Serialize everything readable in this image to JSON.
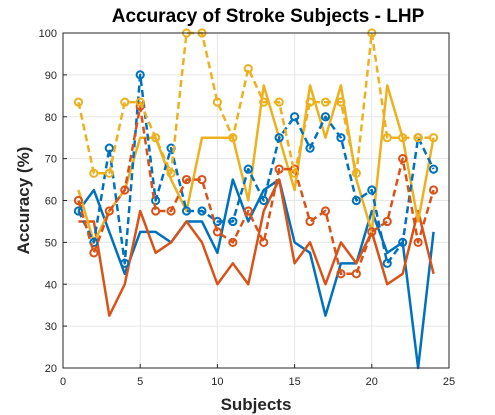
{
  "chart_data": {
    "type": "line",
    "title": "Accuracy of Stroke Subjects - LHP",
    "xlabel": "Subjects",
    "ylabel": "Accuracy (%)",
    "xlim": [
      0,
      25
    ],
    "ylim": [
      20,
      100
    ],
    "xticks": [
      0,
      5,
      10,
      15,
      20,
      25
    ],
    "yticks": [
      20,
      30,
      40,
      50,
      60,
      70,
      80,
      90,
      100
    ],
    "grid": true,
    "legend": "none",
    "x": [
      1,
      2,
      3,
      4,
      5,
      6,
      7,
      8,
      9,
      10,
      11,
      12,
      13,
      14,
      15,
      16,
      17,
      18,
      19,
      20,
      21,
      22,
      23,
      24
    ],
    "series": [
      {
        "color": "#0072BD",
        "style": "solid",
        "marker": "none",
        "values": [
          57.5,
          62.5,
          52.5,
          42.5,
          52.5,
          52.5,
          50,
          55,
          55,
          47.5,
          65,
          55,
          62.5,
          65,
          50,
          47.5,
          32.5,
          45,
          45,
          57.5,
          47.5,
          50,
          20,
          52.5
        ]
      },
      {
        "color": "#D95319",
        "style": "solid",
        "marker": "none",
        "values": [
          55,
          55,
          32.5,
          40,
          57.5,
          47.5,
          50,
          55,
          50,
          40,
          45,
          40,
          57.5,
          65,
          45,
          50,
          40,
          50,
          45,
          52.5,
          40,
          42.5,
          57.5,
          42.5
        ]
      },
      {
        "color": "#EDB120",
        "style": "solid",
        "marker": "none",
        "values": [
          62.5,
          50,
          57.5,
          62.5,
          75,
          75,
          65,
          57.5,
          75,
          75,
          75,
          60,
          87.5,
          75,
          62.5,
          87.5,
          75,
          87.5,
          65,
          52.5,
          87.5,
          75,
          55,
          75
        ]
      },
      {
        "color": "#0072BD",
        "style": "dashed",
        "marker": "circle",
        "values": [
          57.5,
          50,
          72.5,
          45,
          90,
          60,
          72.5,
          57.5,
          57.5,
          55,
          55,
          67.5,
          60,
          75,
          80,
          72.5,
          80,
          75,
          60,
          62.5,
          45,
          50,
          75,
          67.5
        ]
      },
      {
        "color": "#D95319",
        "style": "dashed",
        "marker": "circle",
        "values": [
          60,
          47.5,
          57.5,
          62.5,
          82.5,
          57.5,
          57.5,
          65,
          65,
          52.5,
          50,
          57.5,
          50,
          67.5,
          67.5,
          55,
          57.5,
          42.5,
          42.5,
          52.5,
          55,
          70,
          50,
          62.5
        ]
      },
      {
        "color": "#EDB120",
        "style": "dashed",
        "marker": "circle",
        "values": [
          83.5,
          66.5,
          66.5,
          83.5,
          83.5,
          75,
          66.5,
          100,
          100,
          83.5,
          75,
          91.5,
          83.5,
          83.5,
          66.5,
          83.5,
          83.5,
          83.5,
          66.5,
          100,
          75,
          75,
          75,
          75
        ]
      }
    ]
  }
}
